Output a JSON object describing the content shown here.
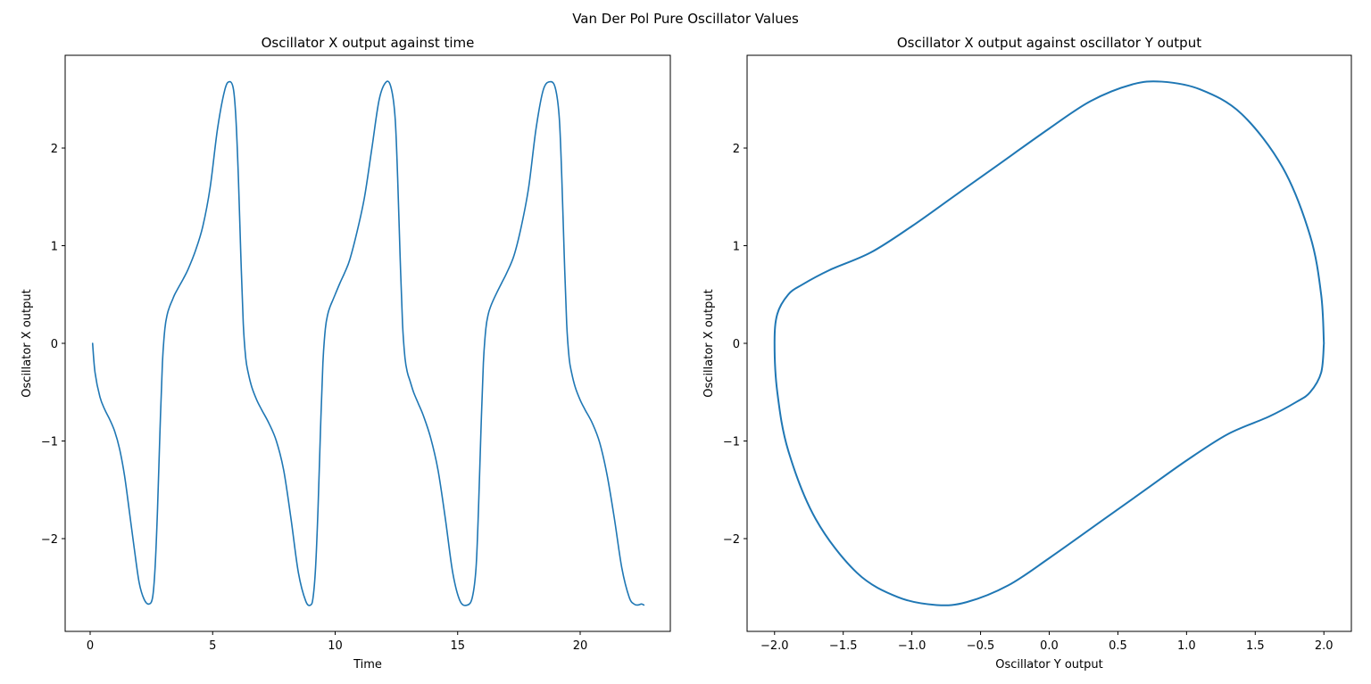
{
  "figure": {
    "suptitle": "Van Der Pol Pure Oscillator Values"
  },
  "colors": {
    "line": "#1f77b4",
    "axes": "#000000",
    "background": "#ffffff"
  },
  "chart_data": [
    {
      "type": "line",
      "title": "Oscillator X output against time",
      "xlabel": "Time",
      "ylabel": "Oscillator X output",
      "xlim": [
        -1.02,
        23.68
      ],
      "ylim": [
        -2.95,
        2.95
      ],
      "xticks": [
        0,
        5,
        10,
        15,
        20
      ],
      "xtick_labels": [
        "0",
        "5",
        "10",
        "15",
        "20"
      ],
      "yticks": [
        -2,
        -1,
        0,
        1,
        2
      ],
      "ytick_labels": [
        "−2",
        "−1",
        "0",
        "1",
        "2"
      ],
      "grid": false,
      "series": [
        {
          "x": [
            0.1,
            0.2,
            0.4,
            0.6,
            0.8,
            1.0,
            1.2,
            1.4,
            1.6,
            1.8,
            2.0,
            2.2,
            2.4,
            2.55,
            2.65,
            2.75,
            2.85,
            2.95,
            3.05,
            3.15,
            3.25,
            3.35,
            3.45,
            3.6,
            3.8,
            4.0,
            4.3,
            4.6,
            4.9,
            5.2,
            5.5,
            5.7,
            5.85,
            5.95,
            6.05,
            6.15,
            6.25,
            6.35,
            6.45,
            6.6,
            6.8,
            7.0,
            7.3,
            7.6,
            7.9,
            8.2,
            8.5,
            8.8,
            9.0,
            9.1,
            9.2,
            9.3,
            9.4,
            9.5,
            9.6,
            9.7,
            9.8,
            9.9,
            10.0,
            10.2,
            10.4,
            10.6,
            10.9,
            11.2,
            11.5,
            11.8,
            12.1,
            12.3,
            12.45,
            12.55,
            12.65,
            12.75,
            12.85,
            12.95,
            13.05,
            13.2,
            13.4,
            13.6,
            13.9,
            14.2,
            14.5,
            14.8,
            15.1,
            15.4,
            15.6,
            15.75,
            15.85,
            15.95,
            16.05,
            16.15,
            16.25,
            16.35,
            16.45,
            16.6,
            16.8,
            17.0,
            17.3,
            17.6,
            17.9,
            18.2,
            18.5,
            18.8,
            19.0,
            19.15,
            19.25,
            19.35,
            19.45,
            19.55,
            19.65,
            19.8,
            20.0,
            20.2,
            20.5,
            20.8,
            21.1,
            21.4,
            21.7,
            22.0,
            22.2,
            22.35,
            22.5,
            22.6
          ],
          "y": [
            0.0,
            -0.3,
            -0.55,
            -0.68,
            -0.78,
            -0.9,
            -1.08,
            -1.35,
            -1.72,
            -2.1,
            -2.45,
            -2.62,
            -2.67,
            -2.6,
            -2.3,
            -1.7,
            -0.9,
            -0.2,
            0.15,
            0.3,
            0.38,
            0.44,
            0.5,
            0.57,
            0.66,
            0.76,
            0.95,
            1.2,
            1.6,
            2.2,
            2.6,
            2.68,
            2.6,
            2.3,
            1.7,
            0.9,
            0.2,
            -0.15,
            -0.3,
            -0.45,
            -0.58,
            -0.68,
            -0.82,
            -1.0,
            -1.3,
            -1.8,
            -2.35,
            -2.64,
            -2.68,
            -2.6,
            -2.3,
            -1.7,
            -0.9,
            -0.2,
            0.15,
            0.3,
            0.38,
            0.44,
            0.5,
            0.62,
            0.73,
            0.86,
            1.15,
            1.5,
            2.0,
            2.5,
            2.68,
            2.6,
            2.3,
            1.7,
            0.9,
            0.2,
            -0.15,
            -0.3,
            -0.38,
            -0.5,
            -0.62,
            -0.74,
            -0.97,
            -1.3,
            -1.8,
            -2.35,
            -2.64,
            -2.68,
            -2.6,
            -2.3,
            -1.7,
            -0.9,
            -0.2,
            0.15,
            0.3,
            0.38,
            0.44,
            0.52,
            0.62,
            0.72,
            0.9,
            1.2,
            1.6,
            2.2,
            2.6,
            2.68,
            2.6,
            2.3,
            1.7,
            0.9,
            0.2,
            -0.15,
            -0.3,
            -0.45,
            -0.58,
            -0.68,
            -0.82,
            -1.02,
            -1.35,
            -1.8,
            -2.3,
            -2.6,
            -2.67,
            -2.68,
            -2.67,
            -2.68
          ]
        }
      ]
    },
    {
      "type": "line",
      "title": "Oscillator X output against oscillator Y output",
      "xlabel": "Oscillator Y output",
      "ylabel": "Oscillator X output",
      "xlim": [
        -2.2,
        2.2
      ],
      "ylim": [
        -2.95,
        2.95
      ],
      "xticks": [
        -2.0,
        -1.5,
        -1.0,
        -0.5,
        0.0,
        0.5,
        1.0,
        1.5,
        2.0
      ],
      "xtick_labels": [
        "−2.0",
        "−1.5",
        "−1.0",
        "−0.5",
        "0.0",
        "0.5",
        "1.0",
        "1.5",
        "2.0"
      ],
      "yticks": [
        -2,
        -1,
        0,
        1,
        2
      ],
      "ytick_labels": [
        "−2",
        "−1",
        "0",
        "1",
        "2"
      ],
      "grid": false,
      "series": [
        {
          "x": [
            2.0,
            1.98,
            1.9,
            1.8,
            1.6,
            1.3,
            1.0,
            0.7,
            0.4,
            0.0,
            -0.3,
            -0.6,
            -0.82,
            -1.1,
            -1.4,
            -1.7,
            -1.9,
            -1.98,
            -2.0,
            -1.98,
            -1.9,
            -1.8,
            -1.6,
            -1.3,
            -1.0,
            -0.7,
            -0.4,
            0.0,
            0.3,
            0.6,
            0.82,
            1.1,
            1.4,
            1.7,
            1.9,
            1.98,
            2.0
          ],
          "y": [
            0.0,
            -0.3,
            -0.5,
            -0.6,
            -0.75,
            -0.93,
            -1.2,
            -1.5,
            -1.8,
            -2.2,
            -2.48,
            -2.65,
            -2.68,
            -2.6,
            -2.35,
            -1.8,
            -1.1,
            -0.5,
            0.0,
            0.3,
            0.5,
            0.6,
            0.75,
            0.93,
            1.2,
            1.5,
            1.8,
            2.2,
            2.48,
            2.65,
            2.68,
            2.6,
            2.35,
            1.8,
            1.1,
            0.5,
            0.0
          ]
        }
      ]
    }
  ]
}
